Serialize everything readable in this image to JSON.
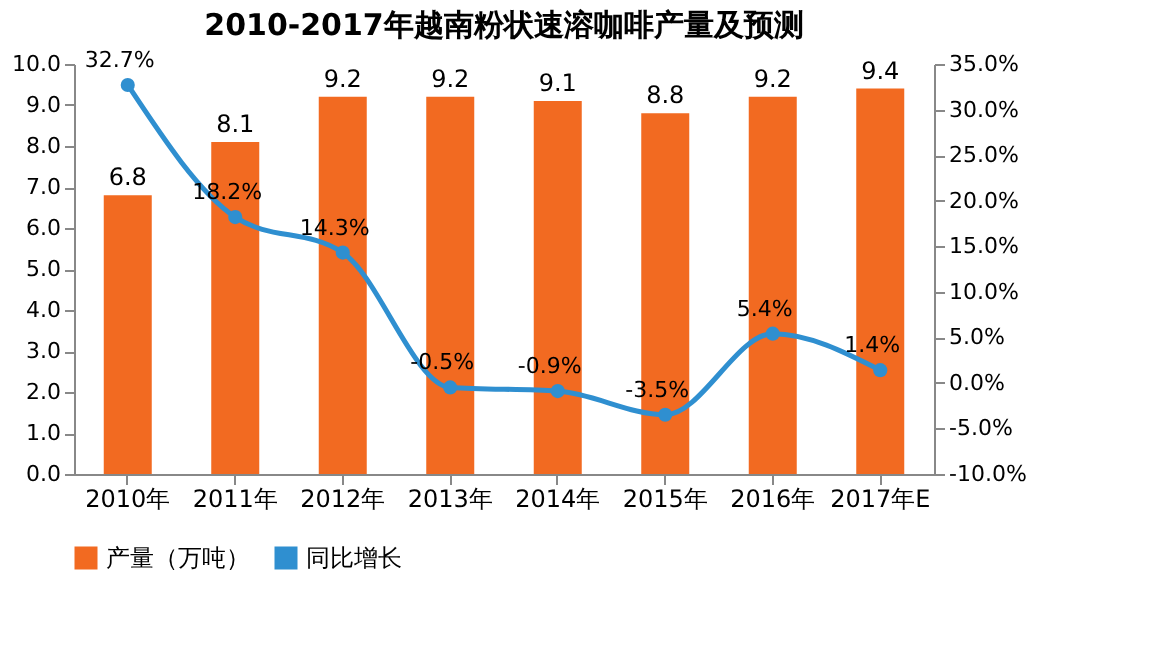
{
  "chart_data": {
    "type": "bar",
    "title": "2010-2017年越南粉状速溶咖啡产量及预测",
    "categories": [
      "2010年",
      "2011年",
      "2012年",
      "2013年",
      "2014年",
      "2015年",
      "2016年",
      "2017年E"
    ],
    "series": [
      {
        "name": "产量（万吨）",
        "color": "#f26a21",
        "values": [
          6.8,
          8.1,
          9.2,
          9.2,
          9.1,
          8.8,
          9.2,
          9.4
        ]
      },
      {
        "name": "同比增长",
        "type": "line",
        "axis": "y2",
        "color": "#2f8fd0",
        "marker": "circle",
        "values": [
          32.7,
          18.2,
          14.3,
          -0.5,
          -0.9,
          -3.5,
          5.4,
          1.4
        ],
        "value_labels": [
          "32.7%",
          "18.2%",
          "14.3%",
          "-0.5%",
          "-0.9%",
          "-3.5%",
          "5.4%",
          "1.4%"
        ]
      }
    ],
    "data_labels": true,
    "ylim": [
      0,
      10
    ],
    "yticks": [
      {
        "value": 0,
        "label": "0.0"
      },
      {
        "value": 1,
        "label": "1.0"
      },
      {
        "value": 2,
        "label": "2.0"
      },
      {
        "value": 3,
        "label": "3.0"
      },
      {
        "value": 4,
        "label": "4.0"
      },
      {
        "value": 5,
        "label": "5.0"
      },
      {
        "value": 6,
        "label": "6.0"
      },
      {
        "value": 7,
        "label": "7.0"
      },
      {
        "value": 8,
        "label": "8.0"
      },
      {
        "value": 9,
        "label": "9.0"
      },
      {
        "value": 10,
        "label": "10.0"
      }
    ],
    "y2lim": [
      -10,
      35
    ],
    "y2ticks": [
      {
        "value": -10,
        "label": "-10.0%"
      },
      {
        "value": -5,
        "label": "-5.0%"
      },
      {
        "value": 0,
        "label": "0.0%"
      },
      {
        "value": 5,
        "label": "5.0%"
      },
      {
        "value": 10,
        "label": "10.0%"
      },
      {
        "value": 15,
        "label": "15.0%"
      },
      {
        "value": 20,
        "label": "20.0%"
      },
      {
        "value": 25,
        "label": "25.0%"
      },
      {
        "value": 30,
        "label": "30.0%"
      },
      {
        "value": 35,
        "label": "35.0%"
      }
    ],
    "grid": false,
    "legend": "bottom"
  }
}
